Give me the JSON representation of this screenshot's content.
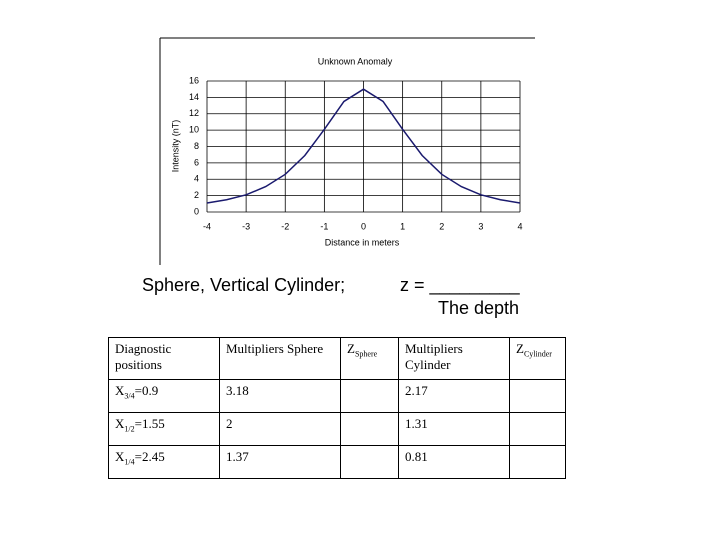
{
  "chart_data": {
    "type": "line",
    "title": "Unknown Anomaly",
    "x_label": "Distance in meters",
    "y_label": "Intensity (nT)",
    "x": [
      -4,
      -3.5,
      -3,
      -2.5,
      -2,
      -1.5,
      -1,
      -0.5,
      0,
      0.5,
      1,
      1.5,
      2,
      2.5,
      3,
      3.5,
      4
    ],
    "series": [
      {
        "color": "#1a1a6e",
        "values": [
          1.1,
          1.5,
          2.1,
          3.1,
          4.6,
          6.9,
          10.1,
          13.5,
          15,
          13.5,
          10.1,
          6.9,
          4.6,
          3.1,
          2.1,
          1.5,
          1.1
        ]
      }
    ],
    "xlim": [
      -4,
      4
    ],
    "xticks": [
      -4,
      -3,
      -2,
      -1,
      0,
      1,
      2,
      3,
      4
    ],
    "ylim": [
      0,
      16
    ],
    "yticks": [
      0,
      2,
      4,
      6,
      8,
      10,
      12,
      14,
      16
    ],
    "grid": true
  },
  "caption": {
    "models": "Sphere, Vertical Cylinder;",
    "equation": "z = _________",
    "depth_note": "The depth"
  },
  "table": {
    "header": {
      "positions": "Diagnostic positions",
      "mult_sphere": "Multipliers Sphere",
      "z_sphere": {
        "symbol": "Z",
        "subscript": "Sphere"
      },
      "mult_cylinder": "Multipliers Cylinder",
      "z_cylinder": {
        "symbol": "Z",
        "subscript": "Cylinder"
      }
    },
    "rows": [
      {
        "symbol": "X",
        "subscript": "3/4",
        "value": "=0.9",
        "sphere": "3.18",
        "cylinder": "2.17"
      },
      {
        "symbol": "X",
        "subscript": "1/2",
        "value": "=1.55",
        "sphere": "2",
        "cylinder": "1.31"
      },
      {
        "symbol": "X",
        "subscript": "1/4",
        "value": "=2.45",
        "sphere": "1.37",
        "cylinder": "0.81"
      }
    ]
  }
}
